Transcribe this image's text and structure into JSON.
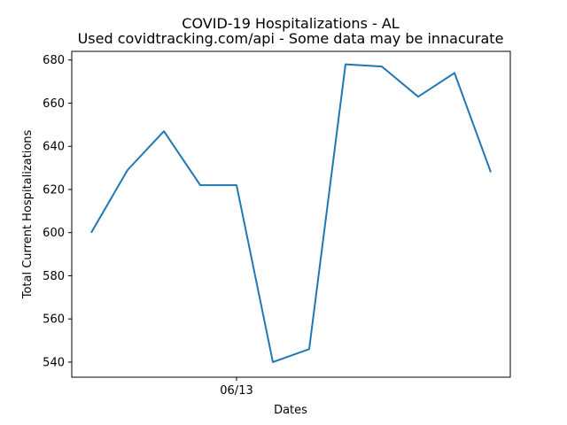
{
  "chart_data": {
    "type": "line",
    "title": "COVID-19 Hospitalizations - AL",
    "subtitle": "Used covidtracking.com/api - Some data may be innacurate",
    "xlabel": "Dates",
    "ylabel": "Total Current Hospitalizations",
    "x_tick_labels": [
      "06/13"
    ],
    "x_tick_index": 4,
    "ylim": [
      533,
      684
    ],
    "y_ticks": [
      540,
      560,
      580,
      600,
      620,
      640,
      660,
      680
    ],
    "grid": false,
    "legend": "none",
    "series": [
      {
        "color": "#1f77b4",
        "values": [
          600,
          629,
          647,
          622,
          622,
          540,
          546,
          678,
          677,
          663,
          674,
          628
        ]
      }
    ]
  }
}
